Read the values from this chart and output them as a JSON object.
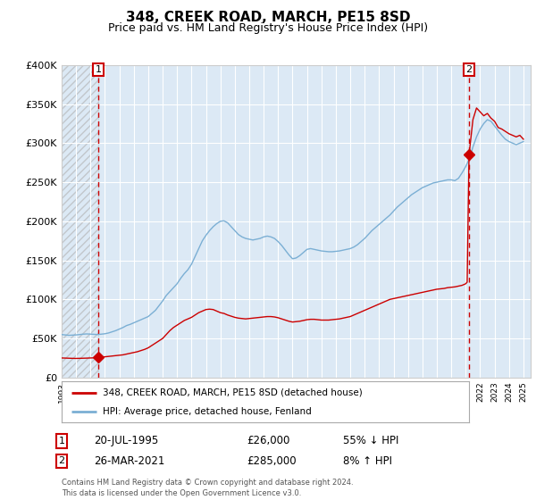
{
  "title": "348, CREEK ROAD, MARCH, PE15 8SD",
  "subtitle": "Price paid vs. HM Land Registry's House Price Index (HPI)",
  "background_color": "#ffffff",
  "plot_bg_color": "#dce9f5",
  "grid_color": "#ffffff",
  "hpi_color": "#7bafd4",
  "price_color": "#cc0000",
  "dashed_line_color": "#cc0000",
  "marker_color": "#cc0000",
  "sale1_date_num": 1995.55,
  "sale1_price": 26000,
  "sale1_label": "1",
  "sale1_date_str": "20-JUL-1995",
  "sale1_pct": "55% ↓ HPI",
  "sale2_date_num": 2021.23,
  "sale2_price": 285000,
  "sale2_label": "2",
  "sale2_date_str": "26-MAR-2021",
  "sale2_pct": "8% ↑ HPI",
  "ylabel_ticks": [
    "£0",
    "£50K",
    "£100K",
    "£150K",
    "£200K",
    "£250K",
    "£300K",
    "£350K",
    "£400K"
  ],
  "ylabel_vals": [
    0,
    50000,
    100000,
    150000,
    200000,
    250000,
    300000,
    350000,
    400000
  ],
  "xmin": 1993,
  "xmax": 2025.5,
  "ymin": 0,
  "ymax": 400000,
  "legend_line1": "348, CREEK ROAD, MARCH, PE15 8SD (detached house)",
  "legend_line2": "HPI: Average price, detached house, Fenland",
  "footer": "Contains HM Land Registry data © Crown copyright and database right 2024.\nThis data is licensed under the Open Government Licence v3.0.",
  "hpi_data": [
    [
      1993.0,
      55000
    ],
    [
      1993.25,
      54500
    ],
    [
      1993.5,
      54000
    ],
    [
      1993.75,
      54200
    ],
    [
      1994.0,
      54500
    ],
    [
      1994.25,
      55000
    ],
    [
      1994.5,
      55500
    ],
    [
      1994.75,
      55800
    ],
    [
      1995.0,
      55500
    ],
    [
      1995.25,
      55200
    ],
    [
      1995.5,
      55000
    ],
    [
      1995.75,
      55500
    ],
    [
      1996.0,
      56000
    ],
    [
      1996.25,
      57000
    ],
    [
      1996.5,
      58500
    ],
    [
      1996.75,
      60000
    ],
    [
      1997.0,
      62000
    ],
    [
      1997.25,
      64000
    ],
    [
      1997.5,
      66500
    ],
    [
      1997.75,
      68000
    ],
    [
      1998.0,
      70000
    ],
    [
      1998.25,
      72000
    ],
    [
      1998.5,
      74000
    ],
    [
      1998.75,
      76000
    ],
    [
      1999.0,
      78000
    ],
    [
      1999.25,
      82000
    ],
    [
      1999.5,
      86000
    ],
    [
      1999.75,
      92000
    ],
    [
      2000.0,
      98000
    ],
    [
      2000.25,
      105000
    ],
    [
      2000.5,
      110000
    ],
    [
      2000.75,
      115000
    ],
    [
      2001.0,
      120000
    ],
    [
      2001.25,
      127000
    ],
    [
      2001.5,
      133000
    ],
    [
      2001.75,
      138000
    ],
    [
      2002.0,
      145000
    ],
    [
      2002.25,
      155000
    ],
    [
      2002.5,
      165000
    ],
    [
      2002.75,
      175000
    ],
    [
      2003.0,
      182000
    ],
    [
      2003.25,
      188000
    ],
    [
      2003.5,
      193000
    ],
    [
      2003.75,
      197000
    ],
    [
      2004.0,
      200000
    ],
    [
      2004.25,
      200500
    ],
    [
      2004.5,
      198000
    ],
    [
      2004.75,
      193000
    ],
    [
      2005.0,
      188000
    ],
    [
      2005.25,
      183000
    ],
    [
      2005.5,
      180000
    ],
    [
      2005.75,
      178000
    ],
    [
      2006.0,
      177000
    ],
    [
      2006.25,
      176000
    ],
    [
      2006.5,
      177000
    ],
    [
      2006.75,
      178000
    ],
    [
      2007.0,
      180000
    ],
    [
      2007.25,
      181000
    ],
    [
      2007.5,
      180000
    ],
    [
      2007.75,
      178000
    ],
    [
      2008.0,
      174000
    ],
    [
      2008.25,
      169000
    ],
    [
      2008.5,
      163000
    ],
    [
      2008.75,
      157000
    ],
    [
      2009.0,
      152000
    ],
    [
      2009.25,
      153000
    ],
    [
      2009.5,
      156000
    ],
    [
      2009.75,
      160000
    ],
    [
      2010.0,
      164000
    ],
    [
      2010.25,
      165000
    ],
    [
      2010.5,
      164000
    ],
    [
      2010.75,
      163000
    ],
    [
      2011.0,
      162000
    ],
    [
      2011.25,
      161500
    ],
    [
      2011.5,
      161000
    ],
    [
      2011.75,
      161000
    ],
    [
      2012.0,
      161500
    ],
    [
      2012.25,
      162000
    ],
    [
      2012.5,
      163000
    ],
    [
      2012.75,
      164000
    ],
    [
      2013.0,
      165000
    ],
    [
      2013.25,
      167000
    ],
    [
      2013.5,
      170000
    ],
    [
      2013.75,
      174000
    ],
    [
      2014.0,
      178000
    ],
    [
      2014.25,
      183000
    ],
    [
      2014.5,
      188000
    ],
    [
      2014.75,
      192000
    ],
    [
      2015.0,
      196000
    ],
    [
      2015.25,
      200000
    ],
    [
      2015.5,
      204000
    ],
    [
      2015.75,
      208000
    ],
    [
      2016.0,
      213000
    ],
    [
      2016.25,
      218000
    ],
    [
      2016.5,
      222000
    ],
    [
      2016.75,
      226000
    ],
    [
      2017.0,
      230000
    ],
    [
      2017.25,
      234000
    ],
    [
      2017.5,
      237000
    ],
    [
      2017.75,
      240000
    ],
    [
      2018.0,
      243000
    ],
    [
      2018.25,
      245000
    ],
    [
      2018.5,
      247000
    ],
    [
      2018.75,
      249000
    ],
    [
      2019.0,
      250000
    ],
    [
      2019.25,
      251000
    ],
    [
      2019.5,
      252000
    ],
    [
      2019.75,
      253000
    ],
    [
      2020.0,
      253000
    ],
    [
      2020.25,
      252000
    ],
    [
      2020.5,
      255000
    ],
    [
      2020.75,
      262000
    ],
    [
      2021.0,
      270000
    ],
    [
      2021.25,
      280000
    ],
    [
      2021.5,
      295000
    ],
    [
      2021.75,
      308000
    ],
    [
      2022.0,
      318000
    ],
    [
      2022.25,
      325000
    ],
    [
      2022.5,
      330000
    ],
    [
      2022.75,
      328000
    ],
    [
      2023.0,
      322000
    ],
    [
      2023.25,
      316000
    ],
    [
      2023.5,
      310000
    ],
    [
      2023.75,
      305000
    ],
    [
      2024.0,
      302000
    ],
    [
      2024.25,
      300000
    ],
    [
      2024.5,
      298000
    ],
    [
      2024.75,
      300000
    ],
    [
      2025.0,
      302000
    ]
  ],
  "price_data": [
    [
      1993.0,
      25000
    ],
    [
      1993.25,
      24800
    ],
    [
      1993.5,
      24600
    ],
    [
      1993.75,
      24500
    ],
    [
      1994.0,
      24400
    ],
    [
      1994.25,
      24500
    ],
    [
      1994.5,
      24600
    ],
    [
      1994.75,
      24800
    ],
    [
      1995.0,
      25000
    ],
    [
      1995.25,
      25200
    ],
    [
      1995.5,
      26000
    ],
    [
      1995.75,
      26200
    ],
    [
      1996.0,
      26500
    ],
    [
      1996.25,
      27000
    ],
    [
      1996.5,
      27500
    ],
    [
      1996.75,
      28000
    ],
    [
      1997.0,
      28500
    ],
    [
      1997.25,
      29000
    ],
    [
      1997.5,
      30000
    ],
    [
      1997.75,
      31000
    ],
    [
      1998.0,
      32000
    ],
    [
      1998.25,
      33000
    ],
    [
      1998.5,
      34500
    ],
    [
      1998.75,
      36000
    ],
    [
      1999.0,
      38000
    ],
    [
      1999.25,
      41000
    ],
    [
      1999.5,
      44000
    ],
    [
      1999.75,
      47000
    ],
    [
      2000.0,
      50000
    ],
    [
      2000.25,
      55000
    ],
    [
      2000.5,
      60000
    ],
    [
      2000.75,
      64000
    ],
    [
      2001.0,
      67000
    ],
    [
      2001.25,
      70000
    ],
    [
      2001.5,
      73000
    ],
    [
      2001.75,
      75000
    ],
    [
      2002.0,
      77000
    ],
    [
      2002.25,
      80000
    ],
    [
      2002.5,
      83000
    ],
    [
      2002.75,
      85000
    ],
    [
      2003.0,
      87000
    ],
    [
      2003.25,
      87500
    ],
    [
      2003.5,
      87000
    ],
    [
      2003.75,
      85000
    ],
    [
      2004.0,
      83000
    ],
    [
      2004.25,
      82000
    ],
    [
      2004.5,
      80000
    ],
    [
      2004.75,
      78500
    ],
    [
      2005.0,
      77000
    ],
    [
      2005.25,
      76000
    ],
    [
      2005.5,
      75500
    ],
    [
      2005.75,
      75000
    ],
    [
      2006.0,
      75500
    ],
    [
      2006.25,
      76000
    ],
    [
      2006.5,
      76500
    ],
    [
      2006.75,
      77000
    ],
    [
      2007.0,
      77500
    ],
    [
      2007.25,
      78000
    ],
    [
      2007.5,
      78000
    ],
    [
      2007.75,
      77500
    ],
    [
      2008.0,
      76500
    ],
    [
      2008.25,
      75000
    ],
    [
      2008.5,
      73500
    ],
    [
      2008.75,
      72000
    ],
    [
      2009.0,
      71000
    ],
    [
      2009.25,
      71500
    ],
    [
      2009.5,
      72000
    ],
    [
      2009.75,
      73000
    ],
    [
      2010.0,
      74000
    ],
    [
      2010.25,
      74500
    ],
    [
      2010.5,
      74500
    ],
    [
      2010.75,
      74000
    ],
    [
      2011.0,
      73500
    ],
    [
      2011.25,
      73500
    ],
    [
      2011.5,
      73500
    ],
    [
      2011.75,
      74000
    ],
    [
      2012.0,
      74500
    ],
    [
      2012.25,
      75000
    ],
    [
      2012.5,
      76000
    ],
    [
      2012.75,
      77000
    ],
    [
      2013.0,
      78000
    ],
    [
      2013.25,
      80000
    ],
    [
      2013.5,
      82000
    ],
    [
      2013.75,
      84000
    ],
    [
      2014.0,
      86000
    ],
    [
      2014.25,
      88000
    ],
    [
      2014.5,
      90000
    ],
    [
      2014.75,
      92000
    ],
    [
      2015.0,
      94000
    ],
    [
      2015.25,
      96000
    ],
    [
      2015.5,
      98000
    ],
    [
      2015.75,
      100000
    ],
    [
      2016.0,
      101000
    ],
    [
      2016.25,
      102000
    ],
    [
      2016.5,
      103000
    ],
    [
      2016.75,
      104000
    ],
    [
      2017.0,
      105000
    ],
    [
      2017.25,
      106000
    ],
    [
      2017.5,
      107000
    ],
    [
      2017.75,
      108000
    ],
    [
      2018.0,
      109000
    ],
    [
      2018.25,
      110000
    ],
    [
      2018.5,
      111000
    ],
    [
      2018.75,
      112000
    ],
    [
      2019.0,
      113000
    ],
    [
      2019.25,
      113500
    ],
    [
      2019.5,
      114000
    ],
    [
      2019.75,
      115000
    ],
    [
      2020.0,
      115500
    ],
    [
      2020.25,
      116000
    ],
    [
      2020.5,
      117000
    ],
    [
      2020.75,
      118000
    ],
    [
      2021.0,
      120000
    ],
    [
      2021.1,
      122000
    ],
    [
      2021.23,
      285000
    ],
    [
      2021.5,
      330000
    ],
    [
      2021.75,
      345000
    ],
    [
      2022.0,
      340000
    ],
    [
      2022.25,
      335000
    ],
    [
      2022.5,
      338000
    ],
    [
      2022.75,
      332000
    ],
    [
      2023.0,
      328000
    ],
    [
      2023.25,
      320000
    ],
    [
      2023.5,
      318000
    ],
    [
      2023.75,
      315000
    ],
    [
      2024.0,
      312000
    ],
    [
      2024.25,
      310000
    ],
    [
      2024.5,
      308000
    ],
    [
      2024.75,
      310000
    ],
    [
      2025.0,
      305000
    ]
  ]
}
